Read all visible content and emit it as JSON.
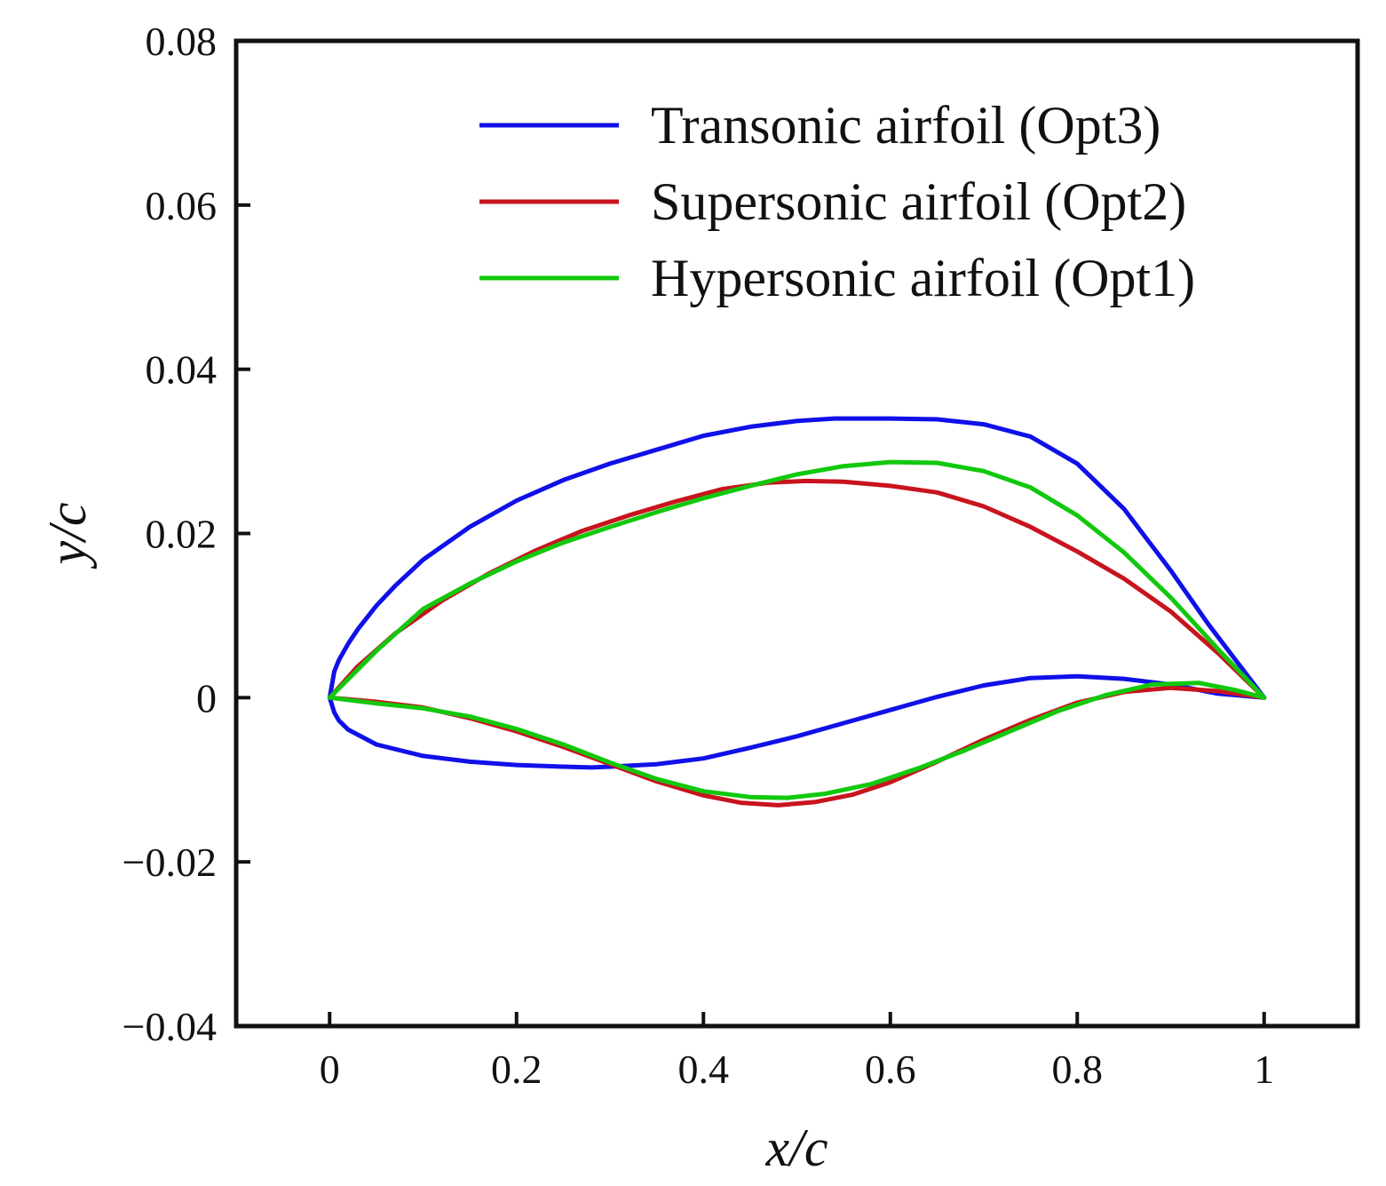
{
  "chart_data": {
    "type": "line",
    "title": "",
    "xlabel": "x/c",
    "ylabel": "y/c",
    "xlim": [
      -0.1,
      1.1
    ],
    "ylim": [
      -0.04,
      0.08
    ],
    "xticks": [
      0,
      0.2,
      0.4,
      0.6,
      0.8,
      1
    ],
    "xtick_labels": [
      "0",
      "0.2",
      "0.4",
      "0.6",
      "0.8",
      "1"
    ],
    "yticks": [
      -0.04,
      -0.02,
      0,
      0.02,
      0.04,
      0.06,
      0.08
    ],
    "ytick_labels": [
      "−0.04",
      "−0.02",
      "0",
      "0.02",
      "0.04",
      "0.06",
      "0.08"
    ],
    "grid": false,
    "legend_position": "top-right",
    "series": [
      {
        "name": "Transonic airfoil (Opt3)",
        "color": "#1010e8",
        "x": [
          1.0,
          0.97,
          0.94,
          0.9,
          0.85,
          0.8,
          0.75,
          0.7,
          0.65,
          0.6,
          0.54,
          0.5,
          0.45,
          0.4,
          0.35,
          0.3,
          0.25,
          0.2,
          0.15,
          0.1,
          0.07,
          0.05,
          0.03,
          0.02,
          0.01,
          0.005,
          0.0,
          0.005,
          0.01,
          0.02,
          0.05,
          0.1,
          0.15,
          0.2,
          0.25,
          0.28,
          0.3,
          0.35,
          0.4,
          0.45,
          0.5,
          0.55,
          0.6,
          0.65,
          0.7,
          0.75,
          0.8,
          0.85,
          0.9,
          0.95,
          1.0
        ],
        "y": [
          0.0,
          0.0045,
          0.009,
          0.0155,
          0.023,
          0.0285,
          0.0318,
          0.0333,
          0.0339,
          0.034,
          0.034,
          0.0337,
          0.033,
          0.0319,
          0.0302,
          0.0285,
          0.0265,
          0.024,
          0.0208,
          0.0168,
          0.0136,
          0.0112,
          0.0083,
          0.0066,
          0.0046,
          0.0032,
          0.0,
          -0.0018,
          -0.0028,
          -0.0039,
          -0.0057,
          -0.0071,
          -0.0078,
          -0.0082,
          -0.0084,
          -0.0085,
          -0.0084,
          -0.0081,
          -0.0074,
          -0.0061,
          -0.0047,
          -0.0031,
          -0.0015,
          0.0001,
          0.0015,
          0.0024,
          0.0026,
          0.0023,
          0.0016,
          0.0005,
          0.0
        ]
      },
      {
        "name": "Supersonic airfoil (Opt2)",
        "color": "#c8141e",
        "x": [
          1.0,
          0.95,
          0.9,
          0.85,
          0.8,
          0.75,
          0.7,
          0.65,
          0.6,
          0.55,
          0.51,
          0.47,
          0.42,
          0.37,
          0.32,
          0.27,
          0.22,
          0.17,
          0.12,
          0.07,
          0.03,
          0.0,
          0.05,
          0.1,
          0.15,
          0.2,
          0.25,
          0.3,
          0.35,
          0.4,
          0.44,
          0.48,
          0.52,
          0.56,
          0.6,
          0.65,
          0.7,
          0.75,
          0.8,
          0.85,
          0.9,
          0.95,
          1.0
        ],
        "y": [
          0.0,
          0.0055,
          0.0105,
          0.0145,
          0.0178,
          0.0208,
          0.0233,
          0.025,
          0.0258,
          0.0263,
          0.0264,
          0.0262,
          0.0254,
          0.0239,
          0.0222,
          0.0203,
          0.0179,
          0.0151,
          0.0118,
          0.0078,
          0.0038,
          0.0,
          -0.0005,
          -0.0012,
          -0.0025,
          -0.0041,
          -0.006,
          -0.0081,
          -0.0102,
          -0.0119,
          -0.0128,
          -0.0131,
          -0.0127,
          -0.0118,
          -0.0103,
          -0.0078,
          -0.0051,
          -0.0027,
          -0.0006,
          0.0007,
          0.0012,
          0.0008,
          0.0
        ]
      },
      {
        "name": "Hypersonic airfoil (Opt1)",
        "color": "#12c80e",
        "x": [
          1.0,
          0.95,
          0.9,
          0.85,
          0.8,
          0.75,
          0.7,
          0.65,
          0.6,
          0.55,
          0.5,
          0.45,
          0.4,
          0.35,
          0.3,
          0.25,
          0.2,
          0.15,
          0.1,
          0.05,
          0.0,
          0.05,
          0.1,
          0.15,
          0.2,
          0.25,
          0.3,
          0.35,
          0.4,
          0.45,
          0.49,
          0.53,
          0.58,
          0.63,
          0.68,
          0.73,
          0.78,
          0.83,
          0.88,
          0.93,
          0.97,
          1.0
        ],
        "y": [
          0.0,
          0.006,
          0.0122,
          0.0177,
          0.0222,
          0.0256,
          0.0276,
          0.0286,
          0.0287,
          0.0282,
          0.0272,
          0.0258,
          0.0243,
          0.0226,
          0.0208,
          0.0189,
          0.0166,
          0.0139,
          0.0108,
          0.0057,
          0.0,
          -0.0007,
          -0.0013,
          -0.0023,
          -0.0038,
          -0.0057,
          -0.0079,
          -0.0099,
          -0.0114,
          -0.0121,
          -0.0122,
          -0.0117,
          -0.0105,
          -0.0086,
          -0.0064,
          -0.004,
          -0.0016,
          0.0003,
          0.0016,
          0.0018,
          0.0009,
          0.0
        ]
      }
    ]
  }
}
